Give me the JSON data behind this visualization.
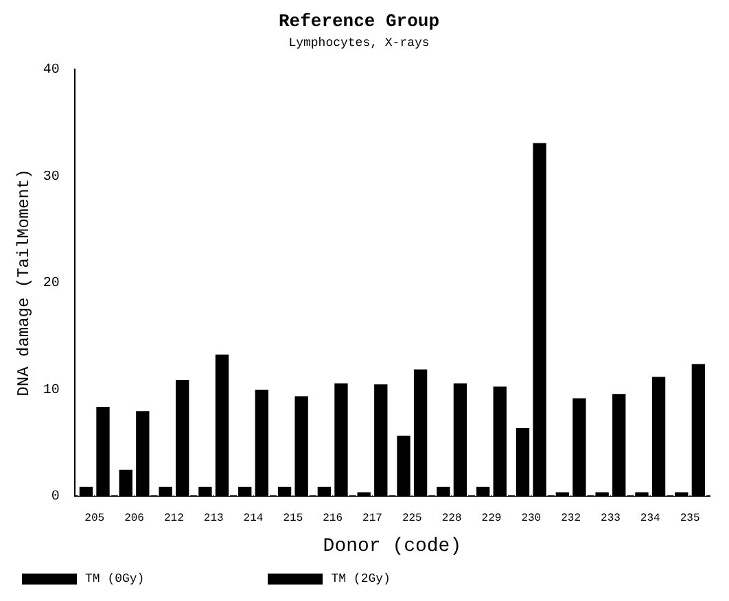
{
  "chart_data": {
    "type": "bar",
    "title": "Reference Group",
    "subtitle": "Lymphocytes, X-rays",
    "xlabel": "Donor (code)",
    "ylabel": "DNA damage (TailMoment)",
    "categories": [
      "205",
      "206",
      "212",
      "213",
      "214",
      "215",
      "216",
      "217",
      "225",
      "228",
      "229",
      "230",
      "232",
      "233",
      "234",
      "235"
    ],
    "series": [
      {
        "name": "TM (0Gy)",
        "color": "#000000",
        "values": [
          1,
          2.6,
          1,
          1,
          1,
          1,
          1,
          0.5,
          5.8,
          1,
          1,
          6.5,
          0.5,
          0.5,
          0.5,
          0.5
        ]
      },
      {
        "name": "TM (2Gy)",
        "color": "#000000",
        "values": [
          8.5,
          8.1,
          11,
          13.4,
          10.1,
          9.5,
          10.7,
          10.6,
          12,
          10.7,
          10.4,
          33.2,
          9.3,
          9.7,
          11.3,
          12.5
        ]
      }
    ],
    "ylim": [
      0,
      40
    ],
    "yticks": [
      0,
      10,
      20,
      30,
      40
    ],
    "grid": false,
    "legend": "bottom"
  }
}
